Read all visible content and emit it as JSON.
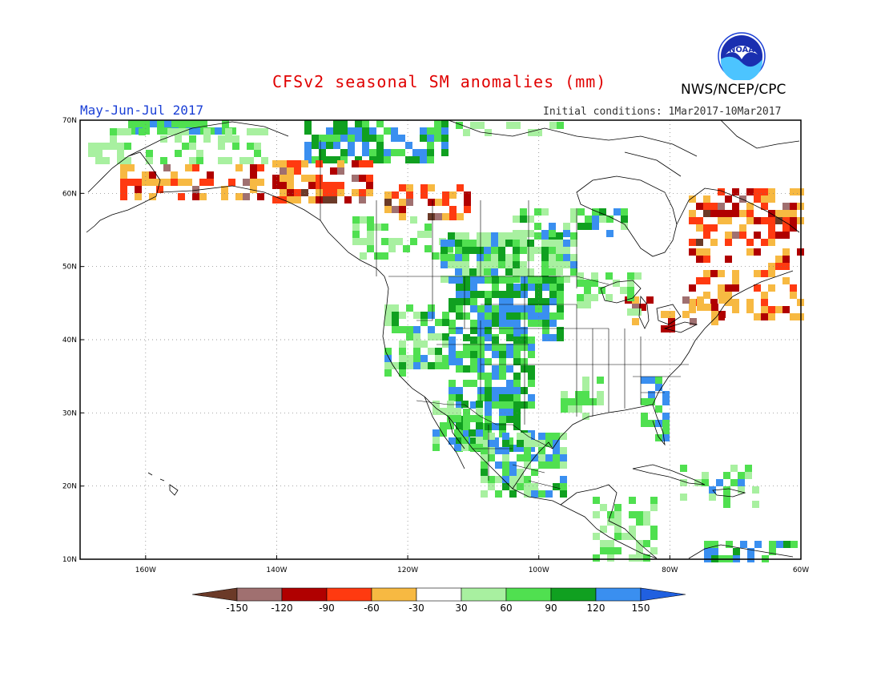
{
  "header": {
    "title": "CFSv2 seasonal SM anomalies (mm)",
    "period": "May-Jun-Jul 2017",
    "initial_conditions": "Initial conditions: 1Mar2017-10Mar2017",
    "agency": "NWS/NCEP/CPC",
    "logo_text": "NOAA"
  },
  "axes": {
    "lat_labels": [
      "70N",
      "60N",
      "50N",
      "40N",
      "30N",
      "20N",
      "10N"
    ],
    "lon_labels": [
      "160W",
      "140W",
      "120W",
      "100W",
      "80W",
      "60W"
    ],
    "lat_range": [
      10,
      70
    ],
    "lon_range": [
      -170,
      -60
    ]
  },
  "legend": {
    "labels": [
      "-150",
      "-120",
      "-90",
      "-60",
      "-30",
      "30",
      "60",
      "90",
      "120",
      "150"
    ],
    "colors": [
      "#6b3a28",
      "#a07070",
      "#b00000",
      "#ff3a10",
      "#f7b942",
      "#ffffff",
      "#a8f0a0",
      "#50e050",
      "#10a020",
      "#3a8ff0",
      "#2060e0"
    ]
  },
  "map_colors": {
    "very_dry": "#6b3a28",
    "dry_brown": "#a07070",
    "dark_red": "#b00000",
    "red": "#ff3a10",
    "orange": "#f7b942",
    "light_green": "#a8f0a0",
    "green": "#50e050",
    "dark_green": "#10a020",
    "blue": "#3a8ff0"
  }
}
